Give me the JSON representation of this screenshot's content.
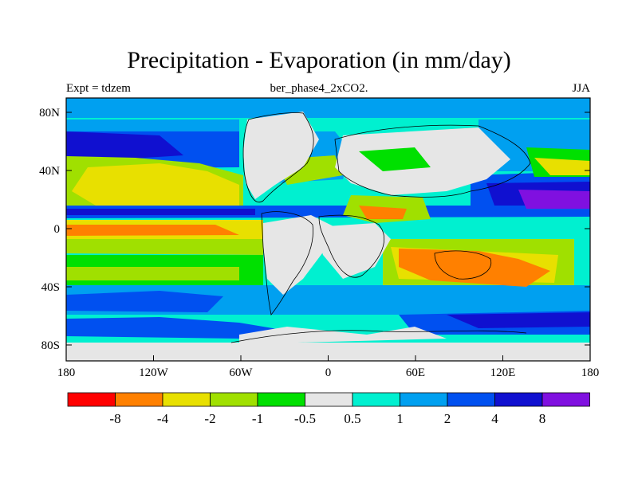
{
  "title": "Precipitation - Evaporation (in mm/day)",
  "experiment_label": "Expt = tdzem",
  "run_name": "ber_phase4_2xCO2.",
  "season": "JJA",
  "y_ticks": [
    "80N",
    "40N",
    "0",
    "40S",
    "80S"
  ],
  "x_ticks": [
    "180",
    "120W",
    "60W",
    "0",
    "60E",
    "120E",
    "180"
  ],
  "colorbar": {
    "colors": [
      "#ff0000",
      "#ff8000",
      "#e8e000",
      "#a0e000",
      "#00e000",
      "#e6e6e6",
      "#00f0d0",
      "#00a0f0",
      "#0050f0",
      "#1010d0",
      "#8010e0"
    ],
    "labels": [
      "-8",
      "-4",
      "-2",
      "-1",
      "-0.5",
      "0.5",
      "1",
      "2",
      "4",
      "8"
    ]
  },
  "colors": {
    "land": "#e6e6e6",
    "frame": "#000000"
  }
}
